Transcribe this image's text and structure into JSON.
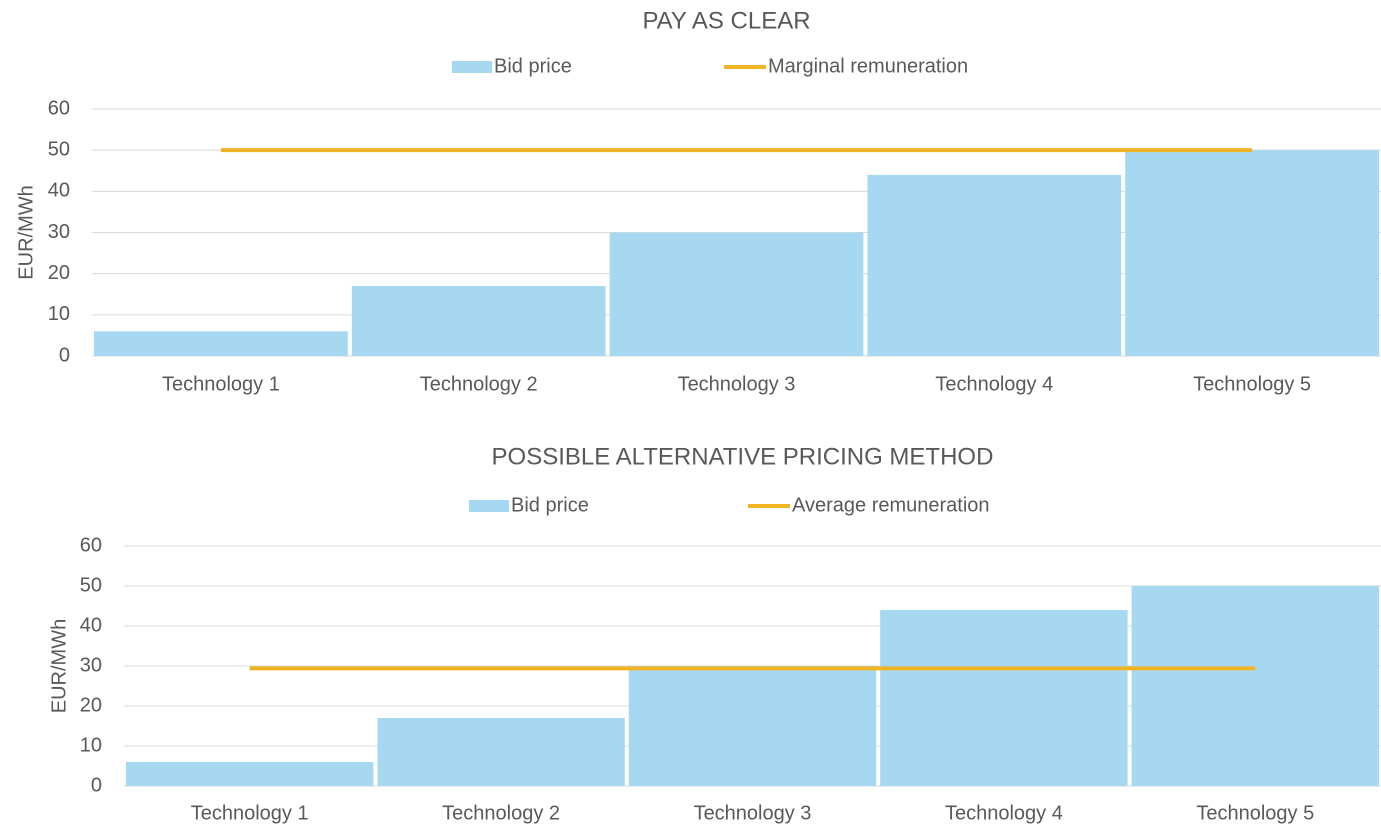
{
  "chart_data": [
    {
      "type": "bar",
      "title": "PAY AS CLEAR",
      "y_label": "EUR/MWh",
      "categories": [
        "Technology 1",
        "Technology 2",
        "Technology 3",
        "Technology 4",
        "Technology 5"
      ],
      "series": [
        {
          "name": "Bid price",
          "type": "bar",
          "color": "#a6d9f1",
          "values": [
            6,
            17,
            30,
            44,
            50
          ]
        },
        {
          "name": "Marginal remuneration",
          "type": "line",
          "color": "#f0b323",
          "values": [
            50,
            50,
            50,
            50,
            50
          ]
        }
      ],
      "ylim": [
        0,
        60
      ],
      "yticks": [
        0,
        10,
        20,
        30,
        40,
        50,
        60
      ],
      "grid": true,
      "legend": "top"
    },
    {
      "type": "bar",
      "title": "POSSIBLE ALTERNATIVE PRICING METHOD",
      "y_label": "EUR/MWh",
      "categories": [
        "Technology 1",
        "Technology 2",
        "Technology 3",
        "Technology 4",
        "Technology 5"
      ],
      "series": [
        {
          "name": "Bid price",
          "type": "bar",
          "color": "#a6d9f1",
          "values": [
            6,
            17,
            30,
            44,
            50
          ]
        },
        {
          "name": "Average remuneration",
          "type": "line",
          "color": "#f0b323",
          "values": [
            29.4,
            29.4,
            29.4,
            29.4,
            29.4
          ]
        }
      ],
      "ylim": [
        0,
        60
      ],
      "yticks": [
        0,
        10,
        20,
        30,
        40,
        50,
        60
      ],
      "grid": true,
      "legend": "top"
    }
  ]
}
